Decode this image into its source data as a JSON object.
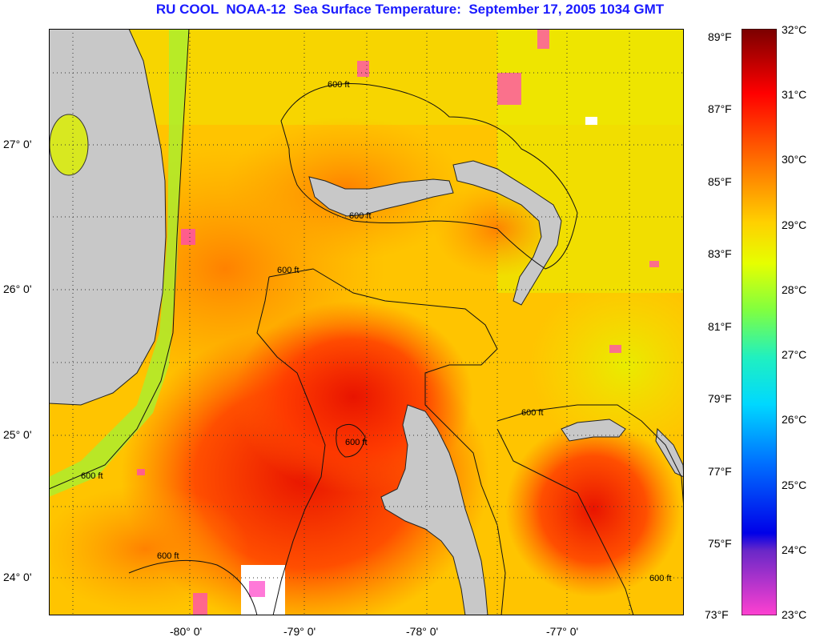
{
  "title": "RU COOL  NOAA-12  Sea Surface Temperature:  September 17, 2005 1034 GMT",
  "map": {
    "lat_labels": [
      "27° 0'",
      "26° 0'",
      "25° 0'",
      "24° 0'"
    ],
    "lon_labels": [
      "-80° 0'",
      "-79° 0'",
      "-78° 0'",
      "-77° 0'"
    ],
    "contour_label": "600 ft",
    "land_color": "#c8c8c8"
  },
  "colorbar": {
    "fahrenheit": [
      "89°F",
      "87°F",
      "85°F",
      "83°F",
      "81°F",
      "79°F",
      "77°F",
      "75°F",
      "73°F"
    ],
    "celsius": [
      "32°C",
      "31°C",
      "30°C",
      "29°C",
      "28°C",
      "27°C",
      "26°C",
      "25°C",
      "24°C",
      "23°C"
    ],
    "colors": [
      "#7a0000",
      "#c80000",
      "#ff2a00",
      "#ff7a00",
      "#ffb400",
      "#ffe600",
      "#c8ff20",
      "#60f060",
      "#20e8c8",
      "#00c8ff",
      "#0064ff",
      "#0000e0",
      "#7a28c8",
      "#ff40c8"
    ]
  }
}
